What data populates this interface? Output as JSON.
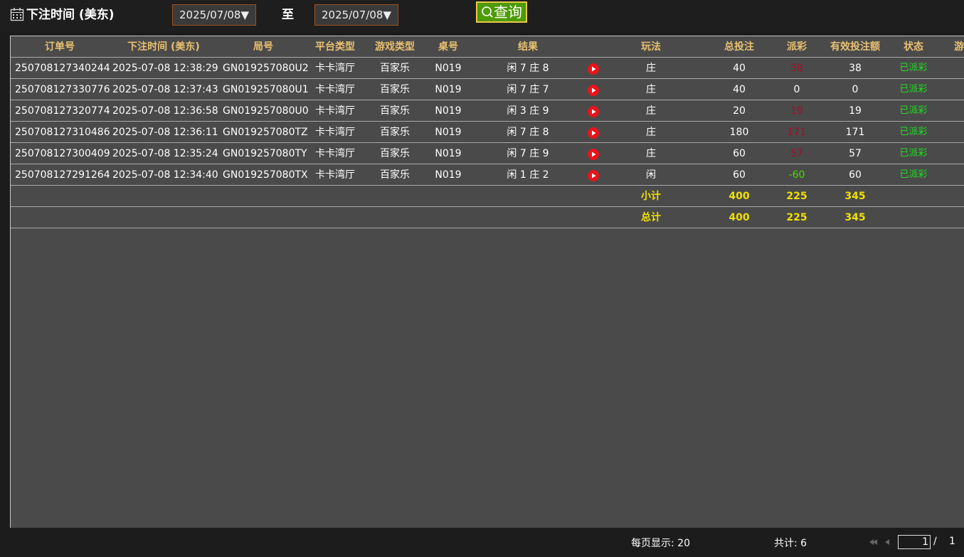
{
  "filter": {
    "label": "下注时间 (美东)",
    "start_date": "2025/07/08▼",
    "separator": "至",
    "end_date": "2025/07/08▼",
    "query_button": "查询"
  },
  "table": {
    "columns": [
      "订单号",
      "下注时间 (美东)",
      "局号",
      "平台类型",
      "游戏类型",
      "桌号",
      "结果",
      "玩法",
      "总投注",
      "派彩",
      "有效投注额",
      "状态",
      "游"
    ],
    "rows": [
      [
        "250708127340244",
        "2025-07-08 12:38:29",
        "GN019257080U2",
        "卡卡湾厅",
        "百家乐",
        "N019",
        "闲 7 庄 8",
        "庄",
        40,
        38,
        38,
        "已派彩"
      ],
      [
        "250708127330776",
        "2025-07-08 12:37:43",
        "GN019257080U1",
        "卡卡湾厅",
        "百家乐",
        "N019",
        "闲 7 庄 7",
        "庄",
        40,
        0,
        0,
        "已派彩"
      ],
      [
        "250708127320774",
        "2025-07-08 12:36:58",
        "GN019257080U0",
        "卡卡湾厅",
        "百家乐",
        "N019",
        "闲 3 庄 9",
        "庄",
        20,
        19,
        19,
        "已派彩"
      ],
      [
        "250708127310486",
        "2025-07-08 12:36:11",
        "GN019257080TZ",
        "卡卡湾厅",
        "百家乐",
        "N019",
        "闲 7 庄 8",
        "庄",
        180,
        171,
        171,
        "已派彩"
      ],
      [
        "250708127300409",
        "2025-07-08 12:35:24",
        "GN019257080TY",
        "卡卡湾厅",
        "百家乐",
        "N019",
        "闲 7 庄 9",
        "庄",
        60,
        57,
        57,
        "已派彩"
      ],
      [
        "250708127291264",
        "2025-07-08 12:34:40",
        "GN019257080TX",
        "卡卡湾厅",
        "百家乐",
        "N019",
        "闲 1 庄 2",
        "闲",
        60,
        -60,
        60,
        "已派彩"
      ]
    ],
    "summary": [
      {
        "label": "小计",
        "total_bet": 400,
        "payout": 225,
        "valid_bet": 345
      },
      {
        "label": "总计",
        "total_bet": 400,
        "payout": 225,
        "valid_bet": 345
      }
    ]
  },
  "footer": {
    "page_size": "每页显示: 20",
    "count": "共计: 6",
    "page": "1",
    "page_sep": "/",
    "total_pages": "1"
  }
}
